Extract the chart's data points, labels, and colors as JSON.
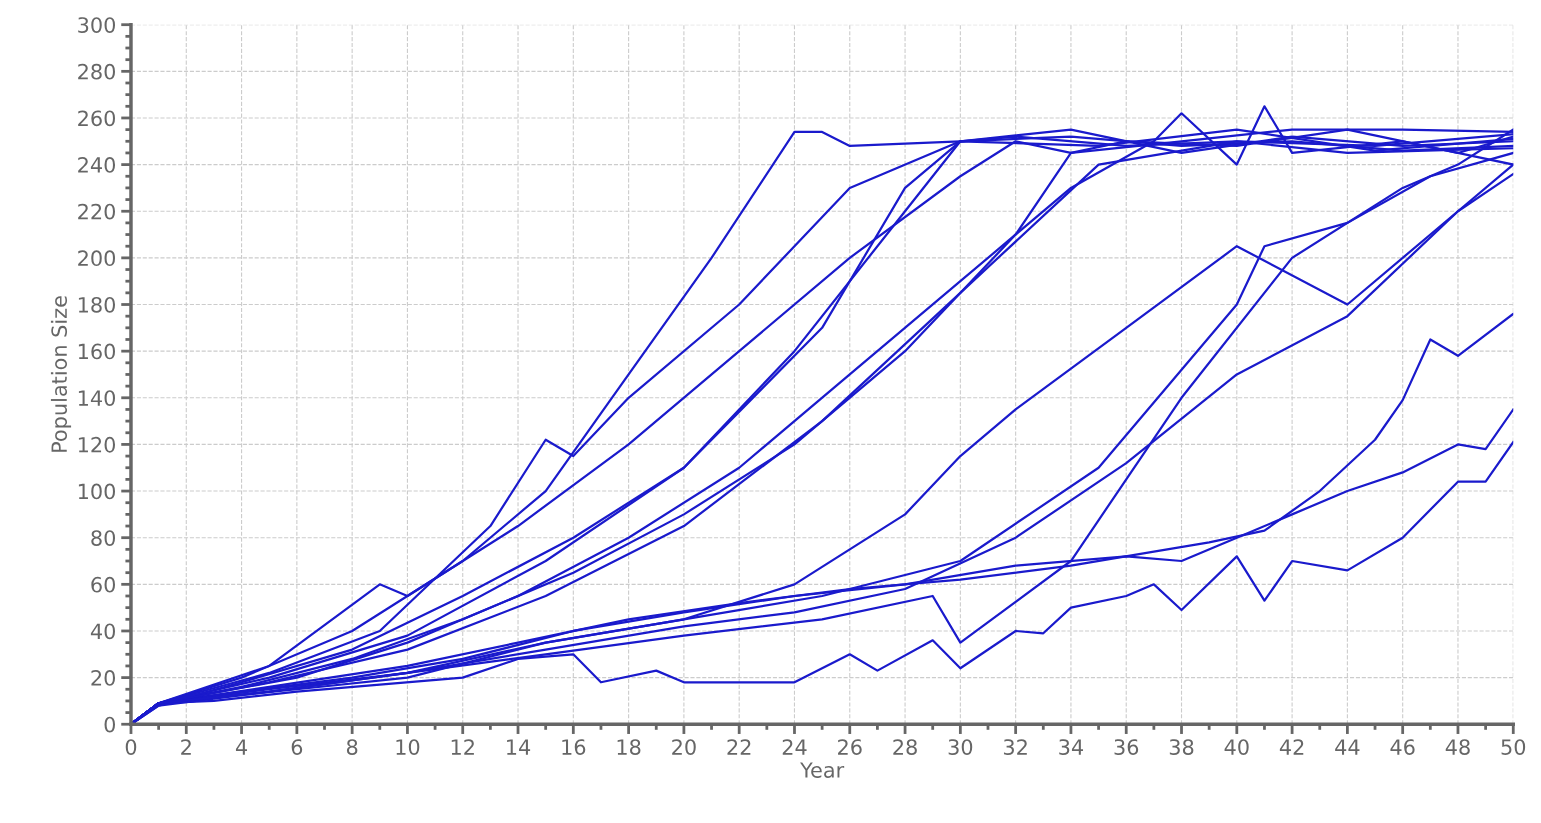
{
  "chart_data": {
    "type": "line",
    "xlabel": "Year",
    "ylabel": "Population Size",
    "xlim": [
      0,
      50
    ],
    "xticks": [
      0,
      2,
      4,
      6,
      8,
      10,
      12,
      14,
      16,
      18,
      20,
      22,
      24,
      26,
      28,
      30,
      32,
      34,
      36,
      38,
      40,
      42,
      44,
      46,
      48,
      50
    ],
    "ylim": [
      0,
      300
    ],
    "yticks": [
      0,
      20,
      40,
      60,
      80,
      100,
      120,
      140,
      160,
      180,
      200,
      220,
      240,
      260,
      280,
      300
    ],
    "grid": true,
    "legend": false,
    "marker": "none",
    "line_style": "solid",
    "series": [
      {
        "color": "#1a1acc",
        "x": [
          0,
          1,
          3,
          6,
          9,
          12,
          14,
          16,
          17,
          19,
          20,
          24,
          26,
          27,
          29,
          30,
          32,
          33,
          34,
          36,
          37,
          38,
          40,
          41,
          42,
          44,
          46,
          48,
          49,
          50
        ],
        "values": [
          0,
          9,
          10,
          14,
          17,
          20,
          28,
          30,
          18,
          23,
          18,
          18,
          30,
          23,
          36,
          24,
          40,
          39,
          50,
          55,
          60,
          49,
          72,
          53,
          70,
          66,
          80,
          104,
          104,
          121
        ]
      },
      {
        "color": "#1a1acc",
        "x": [
          0,
          1,
          4,
          8,
          12,
          16,
          20,
          24,
          28,
          32,
          36,
          38,
          40,
          42,
          44,
          46,
          48,
          49,
          50
        ],
        "values": [
          0,
          9,
          14,
          20,
          28,
          40,
          48,
          55,
          60,
          68,
          72,
          70,
          80,
          90,
          100,
          108,
          120,
          118,
          135
        ]
      },
      {
        "color": "#1a1acc",
        "x": [
          0,
          1,
          5,
          10,
          14,
          18,
          22,
          26,
          30,
          34,
          37,
          39,
          41,
          43,
          45,
          46,
          47,
          48,
          50
        ],
        "values": [
          0,
          9,
          16,
          25,
          35,
          45,
          52,
          58,
          62,
          68,
          74,
          78,
          83,
          100,
          122,
          139,
          165,
          158,
          176
        ]
      },
      {
        "color": "#1a1acc",
        "x": [
          0,
          1,
          4,
          8,
          12,
          15,
          18,
          21,
          24,
          25,
          26,
          30,
          34,
          38,
          42,
          46,
          50
        ],
        "values": [
          0,
          9,
          20,
          40,
          70,
          100,
          150,
          200,
          254,
          254,
          248,
          250,
          252,
          248,
          250,
          246,
          248
        ]
      },
      {
        "color": "#1a1acc",
        "x": [
          0,
          1,
          4,
          8,
          12,
          16,
          20,
          24,
          28,
          30,
          34,
          38,
          42,
          46,
          50
        ],
        "values": [
          0,
          8,
          18,
          32,
          55,
          80,
          110,
          160,
          220,
          250,
          255,
          245,
          252,
          248,
          250
        ]
      },
      {
        "color": "#1a1acc",
        "x": [
          0,
          1,
          4,
          8,
          12,
          16,
          20,
          24,
          28,
          32,
          34,
          36,
          40,
          44,
          48,
          50
        ],
        "values": [
          0,
          9,
          16,
          28,
          45,
          65,
          90,
          120,
          160,
          210,
          245,
          250,
          248,
          255,
          245,
          252
        ]
      },
      {
        "color": "#1a1acc",
        "x": [
          0,
          1,
          5,
          9,
          13,
          15,
          16,
          18,
          22,
          26,
          30,
          32,
          36,
          40,
          44,
          50
        ],
        "values": [
          0,
          9,
          22,
          40,
          85,
          122,
          115,
          140,
          180,
          230,
          250,
          252,
          248,
          250,
          245,
          247
        ]
      },
      {
        "color": "#1a1acc",
        "x": [
          0,
          1,
          5,
          10,
          15,
          20,
          25,
          30,
          35,
          40,
          41,
          44,
          47,
          50
        ],
        "values": [
          0,
          9,
          15,
          22,
          35,
          45,
          55,
          70,
          110,
          180,
          205,
          215,
          235,
          245
        ]
      },
      {
        "color": "#1a1acc",
        "x": [
          0,
          1,
          5,
          10,
          15,
          20,
          25,
          29,
          30,
          34,
          38,
          42,
          46,
          48,
          50
        ],
        "values": [
          0,
          8,
          14,
          22,
          30,
          38,
          45,
          55,
          35,
          70,
          140,
          200,
          230,
          240,
          255
        ]
      },
      {
        "color": "#1a1acc",
        "x": [
          0,
          1,
          5,
          9,
          10,
          14,
          18,
          22,
          26,
          30,
          32,
          34,
          38,
          42,
          46,
          50
        ],
        "values": [
          0,
          9,
          25,
          60,
          55,
          85,
          120,
          160,
          200,
          235,
          250,
          245,
          250,
          255,
          255,
          254
        ]
      },
      {
        "color": "#1a1acc",
        "x": [
          0,
          1,
          6,
          10,
          14,
          18,
          22,
          26,
          30,
          34,
          37,
          38,
          40,
          41,
          42,
          46,
          50
        ],
        "values": [
          0,
          9,
          20,
          35,
          55,
          80,
          110,
          150,
          190,
          230,
          250,
          262,
          240,
          265,
          245,
          250,
          240
        ]
      },
      {
        "color": "#1a1acc",
        "x": [
          0,
          1,
          6,
          10,
          15,
          20,
          24,
          28,
          30,
          32,
          36,
          40,
          44,
          48,
          50
        ],
        "values": [
          0,
          9,
          15,
          20,
          35,
          45,
          60,
          90,
          115,
          135,
          170,
          205,
          180,
          220,
          240
        ]
      },
      {
        "color": "#1a1acc",
        "x": [
          0,
          1,
          5,
          10,
          15,
          20,
          25,
          30,
          35,
          40,
          45,
          50
        ],
        "values": [
          0,
          9,
          18,
          32,
          55,
          85,
          130,
          185,
          240,
          250,
          248,
          253
        ]
      },
      {
        "color": "#1a1acc",
        "x": [
          0,
          1,
          5,
          10,
          15,
          20,
          25,
          28,
          30,
          35,
          40,
          45,
          50
        ],
        "values": [
          0,
          9,
          20,
          38,
          70,
          110,
          170,
          230,
          250,
          248,
          255,
          246,
          251
        ]
      },
      {
        "color": "#1a1acc",
        "x": [
          0,
          1,
          5,
          10,
          15,
          20,
          24,
          28,
          32,
          36,
          40,
          44,
          48,
          50
        ],
        "values": [
          0,
          9,
          14,
          22,
          32,
          42,
          48,
          58,
          80,
          112,
          150,
          175,
          220,
          236
        ]
      }
    ]
  }
}
